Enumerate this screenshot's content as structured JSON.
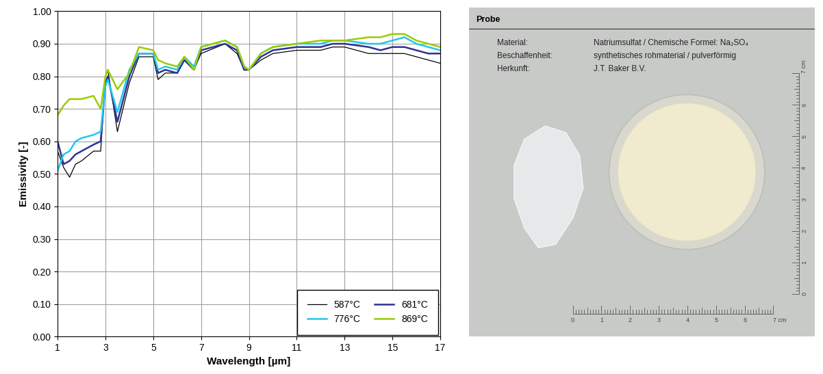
{
  "chart_data": {
    "type": "line",
    "x_label": "Wavelength [µm]",
    "y_label": "Emissivity [-]",
    "x": [
      1,
      1.25,
      1.5,
      1.75,
      2,
      2.5,
      2.8,
      3.0,
      3.1,
      3.5,
      4.0,
      4.4,
      5.0,
      5.2,
      5.5,
      6.0,
      6.3,
      6.7,
      7.0,
      8.0,
      8.5,
      8.8,
      9.0,
      9.5,
      10,
      11,
      12,
      12.5,
      13,
      14,
      14.5,
      15,
      15.5,
      16,
      16.5,
      17
    ],
    "series": [
      {
        "name": "587°C",
        "color": "#000000",
        "values": [
          0.57,
          0.52,
          0.49,
          0.53,
          0.54,
          0.57,
          0.57,
          0.8,
          0.82,
          0.63,
          0.78,
          0.86,
          0.86,
          0.79,
          0.81,
          0.81,
          0.85,
          0.82,
          0.87,
          0.9,
          0.87,
          0.82,
          0.82,
          0.85,
          0.87,
          0.88,
          0.88,
          0.89,
          0.89,
          0.87,
          0.87,
          0.87,
          0.87,
          0.86,
          0.85,
          0.84
        ]
      },
      {
        "name": "681°C",
        "color": "#2e3192",
        "values": [
          0.6,
          0.53,
          0.54,
          0.56,
          0.57,
          0.59,
          0.6,
          0.78,
          0.8,
          0.66,
          0.8,
          0.87,
          0.87,
          0.81,
          0.82,
          0.81,
          0.85,
          0.82,
          0.88,
          0.9,
          0.88,
          0.82,
          0.82,
          0.86,
          0.88,
          0.89,
          0.89,
          0.9,
          0.9,
          0.89,
          0.88,
          0.89,
          0.89,
          0.88,
          0.87,
          0.87
        ]
      },
      {
        "name": "776°C",
        "color": "#1ec8f0",
        "values": [
          0.51,
          0.56,
          0.57,
          0.6,
          0.61,
          0.62,
          0.63,
          0.77,
          0.79,
          0.69,
          0.82,
          0.87,
          0.87,
          0.82,
          0.83,
          0.82,
          0.86,
          0.83,
          0.89,
          0.91,
          0.89,
          0.83,
          0.82,
          0.87,
          0.89,
          0.9,
          0.9,
          0.91,
          0.91,
          0.9,
          0.9,
          0.91,
          0.92,
          0.9,
          0.89,
          0.88
        ]
      },
      {
        "name": "869°C",
        "color": "#99cc00",
        "values": [
          0.68,
          0.71,
          0.73,
          0.73,
          0.73,
          0.74,
          0.7,
          0.8,
          0.82,
          0.76,
          0.81,
          0.89,
          0.88,
          0.85,
          0.84,
          0.83,
          0.86,
          0.82,
          0.89,
          0.91,
          0.89,
          0.83,
          0.82,
          0.87,
          0.89,
          0.9,
          0.91,
          0.91,
          0.91,
          0.92,
          0.92,
          0.93,
          0.93,
          0.91,
          0.9,
          0.89
        ]
      }
    ],
    "xlim": [
      1,
      17
    ],
    "xticks": [
      1,
      3,
      5,
      7,
      9,
      11,
      13,
      15,
      17
    ],
    "ylim": [
      0,
      1
    ],
    "yticks": [
      {
        "value": 0,
        "label": "0.00"
      },
      {
        "value": 0.1,
        "label": "0.10"
      },
      {
        "value": 0.2,
        "label": "0.20"
      },
      {
        "value": 0.3,
        "label": "0.30"
      },
      {
        "value": 0.4,
        "label": "0.40"
      },
      {
        "value": 0.5,
        "label": "0.50"
      },
      {
        "value": 0.6,
        "label": "0.60"
      },
      {
        "value": 0.7,
        "label": "0.70"
      },
      {
        "value": 0.8,
        "label": "0.80"
      },
      {
        "value": 0.9,
        "label": "0.90"
      },
      {
        "value": 1,
        "label": "1.00"
      }
    ],
    "grid": true,
    "legend": "lower right"
  },
  "sample_card": {
    "header": "Probe",
    "rows": [
      {
        "key": "Material:",
        "value": "Natriumsulfat / Chemische Formel: Na₂SO₄"
      },
      {
        "key": "Beschaffenheit:",
        "value": "synthetisches rohmaterial / pulverförmig"
      },
      {
        "key": "Herkunft:",
        "value": "J.T. Baker B.V."
      }
    ],
    "ruler_labels": [
      "0",
      "1",
      "2",
      "3",
      "4",
      "5",
      "6",
      "7 cm"
    ]
  }
}
